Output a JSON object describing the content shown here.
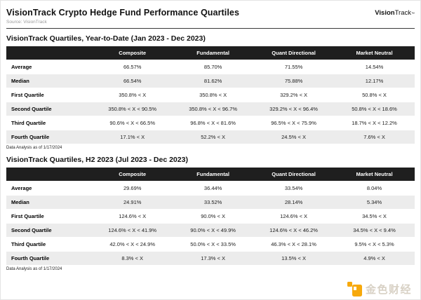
{
  "page": {
    "title": "VisionTrack Crypto Hedge Fund Performance Quartiles",
    "source": "Source: VisionTrack",
    "brand": {
      "bold": "Vision",
      "regular": "Track",
      "tm": "™"
    }
  },
  "tables": [
    {
      "title": "VisionTrack Quartiles, Year-to-Date (Jan 2023 - Dec 2023)",
      "columns": [
        "Composite",
        "Fundamental",
        "Quant Directional",
        "Market Neutral"
      ],
      "rows": [
        {
          "label": "Average",
          "values": [
            "66.57%",
            "85.70%",
            "71.55%",
            "14.54%"
          ]
        },
        {
          "label": "Median",
          "values": [
            "66.54%",
            "81.62%",
            "75.88%",
            "12.17%"
          ]
        },
        {
          "label": "First Quartile",
          "values": [
            "350.8% < X",
            "350.8% < X",
            "329.2% < X",
            "50.8% < X"
          ]
        },
        {
          "label": "Second Quartile",
          "values": [
            "350.8% < X < 90.5%",
            "350.8% < X < 96.7%",
            "329.2% < X < 96.4%",
            "50.8% < X < 18.6%"
          ]
        },
        {
          "label": "Third Quartile",
          "values": [
            "90.6% < X < 66.5%",
            "96.8% < X < 81.6%",
            "96.5% < X < 75.9%",
            "18.7% < X < 12.2%"
          ]
        },
        {
          "label": "Fourth Quartile",
          "values": [
            "17.1% < X",
            "52.2% < X",
            "24.5% < X",
            "7.6% < X"
          ]
        }
      ],
      "footnote": "Data Analysis as of 1/17/2024"
    },
    {
      "title": "VisionTrack Quartiles, H2 2023 (Jul 2023 - Dec 2023)",
      "columns": [
        "Composite",
        "Fundamental",
        "Quant Directional",
        "Market Neutral"
      ],
      "rows": [
        {
          "label": "Average",
          "values": [
            "29.69%",
            "36.44%",
            "33.54%",
            "8.04%"
          ]
        },
        {
          "label": "Median",
          "values": [
            "24.91%",
            "33.52%",
            "28.14%",
            "5.34%"
          ]
        },
        {
          "label": "First Quartile",
          "values": [
            "124.6% < X",
            "90.0% < X",
            "124.6% < X",
            "34.5% < X"
          ]
        },
        {
          "label": "Second Quartile",
          "values": [
            "124.6% < X < 41.9%",
            "90.0% < X < 49.9%",
            "124.6% < X < 46.2%",
            "34.5% < X < 9.4%"
          ]
        },
        {
          "label": "Third Quartile",
          "values": [
            "42.0% < X < 24.9%",
            "50.0% < X < 33.5%",
            "46.3% < X < 28.1%",
            "9.5% < X < 5.3%"
          ]
        },
        {
          "label": "Fourth Quartile",
          "values": [
            "8.3% < X",
            "17.3% < X",
            "13.5% < X",
            "4.9% < X"
          ]
        }
      ],
      "footnote": "Data Analysis as of 1/17/2024"
    }
  ],
  "watermark": {
    "text": "金色财经"
  },
  "colors": {
    "header_bar": "#1f1f1f",
    "row_alt": "#ececec",
    "rule": "#3a3a3a",
    "watermark_gold": "#f7a90c",
    "watermark_text": "#d8d1c5"
  }
}
